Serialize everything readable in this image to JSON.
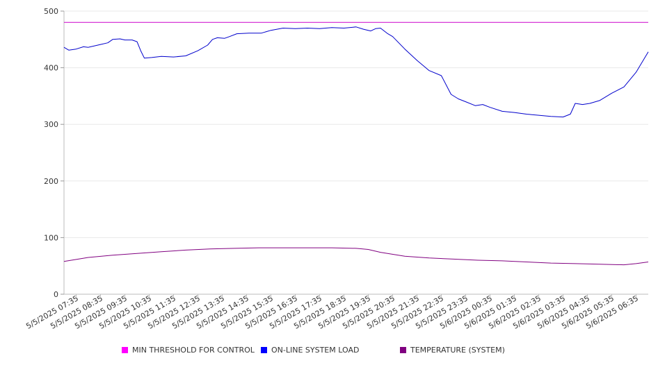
{
  "chart_data": {
    "type": "line",
    "title": "",
    "xlabel": "",
    "ylabel": "",
    "ylim": [
      0,
      500
    ],
    "yticks": [
      0,
      100,
      200,
      300,
      400,
      500
    ],
    "grid": true,
    "legend_position": "bottom",
    "x_tick_labels": [
      "5/5/2025 07:35",
      "5/5/2025 08:35",
      "5/5/2025 09:35",
      "5/5/2025 10:35",
      "5/5/2025 11:35",
      "5/5/2025 12:35",
      "5/5/2025 13:35",
      "5/5/2025 14:35",
      "5/5/2025 15:35",
      "5/5/2025 16:35",
      "5/5/2025 17:35",
      "5/5/2025 18:35",
      "5/5/2025 19:35",
      "5/5/2025 20:35",
      "5/5/2025 21:35",
      "5/5/2025 22:35",
      "5/5/2025 23:35",
      "5/6/2025 00:35",
      "5/6/2025 01:35",
      "5/6/2025 02:35",
      "5/6/2025 03:35",
      "5/6/2025 04:35",
      "5/6/2025 05:35",
      "5/6/2025 06:35"
    ],
    "x_range_hours": [
      0,
      24
    ],
    "series": [
      {
        "name": "MIN THRESHOLD FOR CONTROL",
        "color": "#cc00cc",
        "legend_color": "#ff00ff",
        "x": [
          0,
          24
        ],
        "values": [
          480,
          480
        ]
      },
      {
        "name": "ON-LINE SYSTEM LOAD",
        "color": "#0000cc",
        "legend_color": "#0000ff",
        "x": [
          0,
          0.2,
          0.5,
          0.8,
          1.0,
          1.5,
          1.8,
          2.0,
          2.3,
          2.5,
          2.8,
          3.0,
          3.15,
          3.3,
          3.6,
          4.0,
          4.5,
          5.0,
          5.5,
          5.9,
          6.1,
          6.3,
          6.6,
          6.8,
          7.1,
          7.6,
          8.1,
          8.5,
          9.0,
          9.5,
          10.0,
          10.5,
          11.0,
          11.5,
          12.0,
          12.3,
          12.6,
          12.8,
          13.0,
          13.3,
          13.5,
          14.0,
          14.5,
          15.0,
          15.5,
          15.9,
          16.2,
          16.5,
          16.9,
          17.2,
          17.5,
          18.0,
          18.5,
          19.0,
          19.5,
          20.0,
          20.5,
          20.8,
          21.0,
          21.3,
          21.6,
          22.0,
          22.5,
          23.0,
          23.5,
          24.0
        ],
        "values": [
          436,
          431,
          433,
          437,
          436,
          441,
          444,
          450,
          451,
          449,
          449,
          446,
          430,
          417,
          418,
          420,
          419,
          421,
          430,
          440,
          450,
          453,
          452,
          455,
          460,
          461,
          461,
          466,
          470,
          469,
          470,
          469,
          471,
          470,
          472,
          468,
          465,
          469,
          470,
          460,
          455,
          433,
          413,
          395,
          386,
          353,
          345,
          340,
          333,
          335,
          330,
          323,
          321,
          318,
          316,
          314,
          313,
          318,
          337,
          335,
          337,
          342,
          355,
          366,
          392,
          428
        ]
      },
      {
        "name": "TEMPERATURE (SYSTEM)",
        "color": "#800080",
        "legend_color": "#800080",
        "x": [
          0,
          1,
          2,
          3,
          4,
          5,
          6,
          7,
          8,
          9,
          10,
          11,
          12,
          12.5,
          13,
          14,
          15,
          16,
          17,
          18,
          19,
          20,
          21,
          22,
          23,
          23.5,
          24
        ],
        "values": [
          58,
          65,
          69,
          72,
          75,
          78,
          80,
          81,
          82,
          82,
          82,
          82,
          81,
          79,
          74,
          67,
          64,
          62,
          60,
          59,
          57,
          55,
          54,
          53,
          52,
          54,
          57
        ]
      }
    ]
  }
}
